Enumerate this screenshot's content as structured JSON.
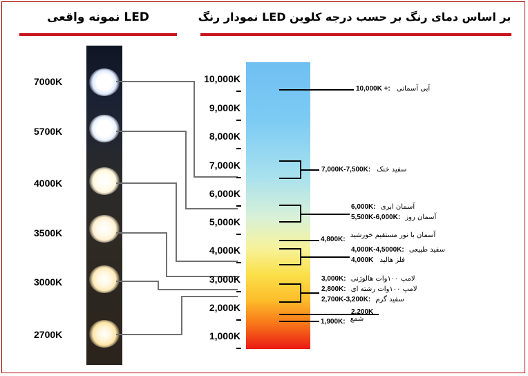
{
  "titles": {
    "left": "نمونه واقعی LED",
    "right": "نمودار رنگ LED بر اساس دمای رنگ بر حسب درجه کلوین"
  },
  "leds": [
    {
      "label": "7000K",
      "color": "#dfeaff"
    },
    {
      "label": "5700K",
      "color": "#e9f1ff"
    },
    {
      "label": "4000K",
      "color": "#fff6da"
    },
    {
      "label": "3500K",
      "color": "#fff0cf"
    },
    {
      "label": "3000K",
      "color": "#ffeab8"
    },
    {
      "label": "2700K",
      "color": "#ffe3a6"
    }
  ],
  "scale": [
    "10,000K",
    "9,000K",
    "8,000K",
    "7,000K",
    "6,000K",
    "5,000K",
    "4,000K",
    "3,000K",
    "2,000K",
    "1,000K"
  ],
  "annotations": [
    {
      "value": "10,000K +:",
      "name": "آبی آسمانی"
    },
    {
      "value": "7,000K-7,500K:",
      "name": "سفید خنک"
    },
    {
      "value": "6,000K:",
      "name": "آسمان ابری"
    },
    {
      "value": "5,500K-6,000K:",
      "name": "آسمان روز"
    },
    {
      "value": "4,800K:",
      "name": "آسمان با نور مستقیم خورشید"
    },
    {
      "value": "4,000K-4,5000K:",
      "name": "سفید طبیعی"
    },
    {
      "value": "4,000K",
      "name": "فلز هالید"
    },
    {
      "value": "3,000K:",
      "name": "لامپ ۱۰۰وات هالوژنی"
    },
    {
      "value": "2,800K:",
      "name": "لامپ ۱۰۰وات رشته ای"
    },
    {
      "value": "2,700K-3,200K:",
      "name": "سفید گرم"
    },
    {
      "value": "2,200K",
      "name": ""
    },
    {
      "value": "1,900K:",
      "name": "شمع"
    }
  ]
}
